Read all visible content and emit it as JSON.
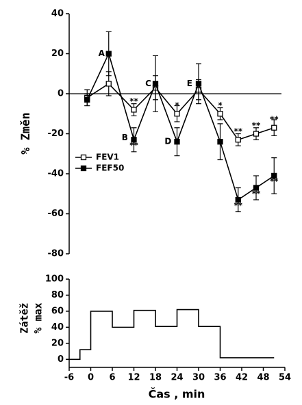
{
  "chart_data": [
    {
      "type": "line",
      "y_label": "% Změn",
      "xlim": [
        -6,
        54
      ],
      "ylim": [
        -80,
        40
      ],
      "yticks": [
        -80,
        -60,
        -40,
        -20,
        0,
        20,
        40
      ],
      "reference_line": 0,
      "legend": "left",
      "series": [
        {
          "name": "FEV1",
          "color": "#000000",
          "filled": false,
          "x": [
            -1,
            5,
            12,
            18,
            24,
            30,
            36,
            41,
            46,
            51
          ],
          "values": [
            -2,
            5,
            -8,
            3,
            -10,
            2,
            -10,
            -23,
            -20,
            -17
          ],
          "errors": [
            4,
            6,
            3,
            6,
            4,
            5,
            3,
            3,
            3,
            4
          ]
        },
        {
          "name": "FEF50",
          "color": "#000000",
          "filled": true,
          "x": [
            -1,
            5,
            12,
            18,
            24,
            30,
            36,
            41,
            46,
            51
          ],
          "values": [
            -3,
            20,
            -23,
            5,
            -24,
            5,
            -24,
            -53,
            -47,
            -41
          ],
          "errors": [
            3,
            11,
            6,
            14,
            7,
            10,
            9,
            6,
            6,
            9
          ]
        }
      ],
      "annotations": [
        {
          "text": "A",
          "x": 3,
          "y": 20
        },
        {
          "text": "B",
          "x": 9.5,
          "y": -22
        },
        {
          "text": "C",
          "x": 16,
          "y": 5
        },
        {
          "text": "D",
          "x": 21.5,
          "y": -24
        },
        {
          "text": "E",
          "x": 27.5,
          "y": 5
        },
        {
          "text": "**",
          "x": 12,
          "y": -4
        },
        {
          "text": "**",
          "x": 12,
          "y": -26
        },
        {
          "text": "*",
          "x": 24,
          "y": -6
        },
        {
          "text": "*",
          "x": 36,
          "y": -6
        },
        {
          "text": "**",
          "x": 41,
          "y": -19
        },
        {
          "text": "**",
          "x": 46,
          "y": -16
        },
        {
          "text": "**",
          "x": 51,
          "y": -13
        },
        {
          "text": "**",
          "x": 41,
          "y": -56
        },
        {
          "text": "**",
          "x": 46,
          "y": -50
        },
        {
          "text": "**",
          "x": 51,
          "y": -44
        }
      ]
    },
    {
      "type": "line",
      "y_label": [
        "Zátěž",
        "% max"
      ],
      "x_label": "Čas , min",
      "xlim": [
        -6,
        54
      ],
      "xticks": [
        -6,
        0,
        6,
        12,
        18,
        24,
        30,
        36,
        42,
        48,
        54
      ],
      "ylim": [
        -10,
        100
      ],
      "yticks": [
        0,
        20,
        40,
        60,
        80,
        100
      ],
      "series": [
        {
          "color": "#000000",
          "x": [
            -6,
            -3,
            -3,
            0,
            0,
            6,
            6,
            12,
            12,
            18,
            18,
            24,
            24,
            30,
            30,
            36,
            36,
            51
          ],
          "values": [
            0,
            0,
            12,
            12,
            60,
            60,
            40,
            40,
            61,
            61,
            41,
            41,
            62,
            62,
            41,
            41,
            2,
            2
          ]
        }
      ]
    }
  ]
}
